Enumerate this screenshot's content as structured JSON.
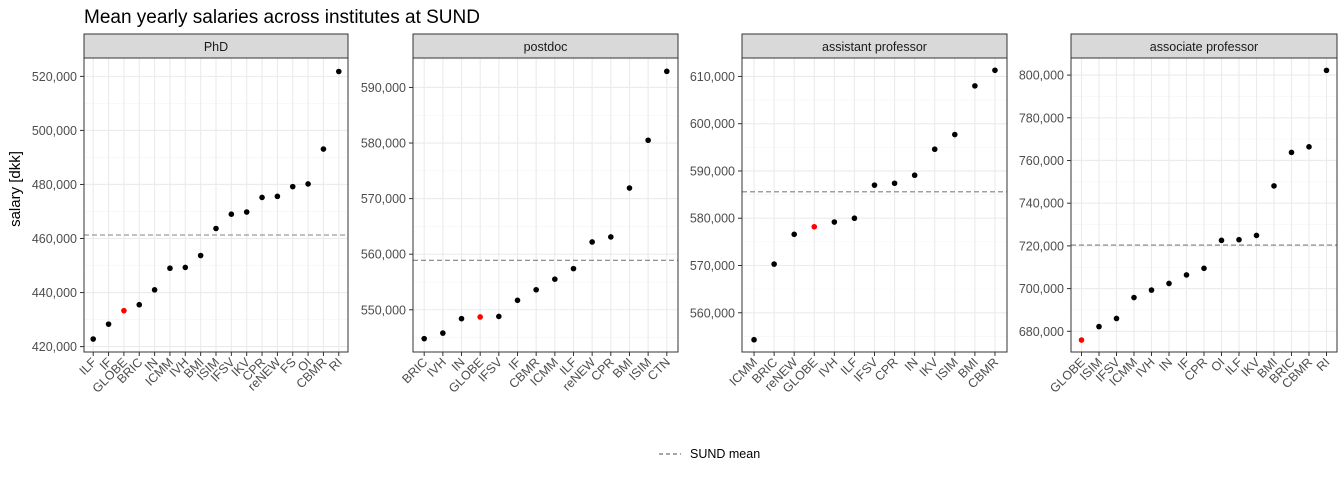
{
  "title": "Mean yearly salaries across institutes at SUND",
  "ylabel": "salary [dkk]",
  "legend": {
    "label": "SUND mean",
    "placement": "bottom"
  },
  "colors": {
    "point": "#000000",
    "highlight": "#ff0000",
    "mean_line": "#808080",
    "strip_fill": "#d9d9d9",
    "grid_major": "#ebebeb",
    "grid_minor": "#f5f5f5"
  },
  "chart_data": [
    {
      "type": "scatter",
      "panel": "PhD",
      "categories": [
        "ILF",
        "IF",
        "GLOBE",
        "BRIC",
        "IN",
        "ICMM",
        "IVH",
        "BMI",
        "ISIM",
        "IFSV",
        "IKV",
        "CPR",
        "reNEW",
        "FS",
        "OI",
        "CBMR",
        "RI"
      ],
      "values": [
        422800,
        428300,
        433300,
        435500,
        441000,
        449000,
        449300,
        453700,
        463700,
        469000,
        469800,
        475200,
        475600,
        479200,
        480200,
        493100,
        521800
      ],
      "highlight": "GLOBE",
      "mean": 461300,
      "ylim": [
        418000,
        526800
      ],
      "yticks": [
        420000,
        440000,
        460000,
        480000,
        500000,
        520000
      ],
      "ytick_labels": [
        "420,000",
        "440,000",
        "460,000",
        "480,000",
        "500,000",
        "520,000"
      ]
    },
    {
      "type": "scatter",
      "panel": "postdoc",
      "categories": [
        "BRIC",
        "IVH",
        "IN",
        "GLOBE",
        "IFSV",
        "IF",
        "CBMR",
        "ICMM",
        "ILF",
        "reNEW",
        "CPR",
        "BMI",
        "ISIM",
        "CTN"
      ],
      "values": [
        544800,
        545800,
        548400,
        548700,
        548800,
        551700,
        553600,
        555500,
        557400,
        562200,
        563100,
        571900,
        580500,
        592900
      ],
      "highlight": "GLOBE",
      "mean": 558900,
      "ylim": [
        542400,
        595300
      ],
      "yticks": [
        550000,
        560000,
        570000,
        580000,
        590000
      ],
      "ytick_labels": [
        "550,000",
        "560,000",
        "570,000",
        "580,000",
        "590,000"
      ]
    },
    {
      "type": "scatter",
      "panel": "assistant professor",
      "categories": [
        "ICMM",
        "BRIC",
        "reNEW",
        "GLOBE",
        "IVH",
        "ILF",
        "IFSV",
        "CPR",
        "IN",
        "IKV",
        "ISIM",
        "BMI",
        "CBMR"
      ],
      "values": [
        554300,
        570300,
        576600,
        578200,
        579200,
        580000,
        587000,
        587400,
        589100,
        594600,
        597700,
        608000,
        611300
      ],
      "highlight": "GLOBE",
      "mean": 585600,
      "ylim": [
        551700,
        613900
      ],
      "yticks": [
        560000,
        570000,
        580000,
        590000,
        600000,
        610000
      ],
      "ytick_labels": [
        "560,000",
        "570,000",
        "580,000",
        "590,000",
        "600,000",
        "610,000"
      ]
    },
    {
      "type": "scatter",
      "panel": "associate professor",
      "categories": [
        "GLOBE",
        "ISIM",
        "IFSV",
        "ICMM",
        "IVH",
        "IN",
        "IF",
        "CPR",
        "OI",
        "ILF",
        "IKV",
        "BMI",
        "BRIC",
        "CBMR",
        "RI"
      ],
      "values": [
        675900,
        682200,
        686000,
        695800,
        699300,
        702400,
        706400,
        709500,
        722600,
        722900,
        724900,
        748100,
        763800,
        766400,
        802200
      ],
      "highlight": "GLOBE",
      "mean": 720400,
      "ylim": [
        670300,
        808000
      ],
      "yticks": [
        680000,
        700000,
        720000,
        740000,
        760000,
        780000,
        800000
      ],
      "ytick_labels": [
        "680,000",
        "700,000",
        "720,000",
        "740,000",
        "760,000",
        "780,000",
        "800,000"
      ]
    }
  ]
}
